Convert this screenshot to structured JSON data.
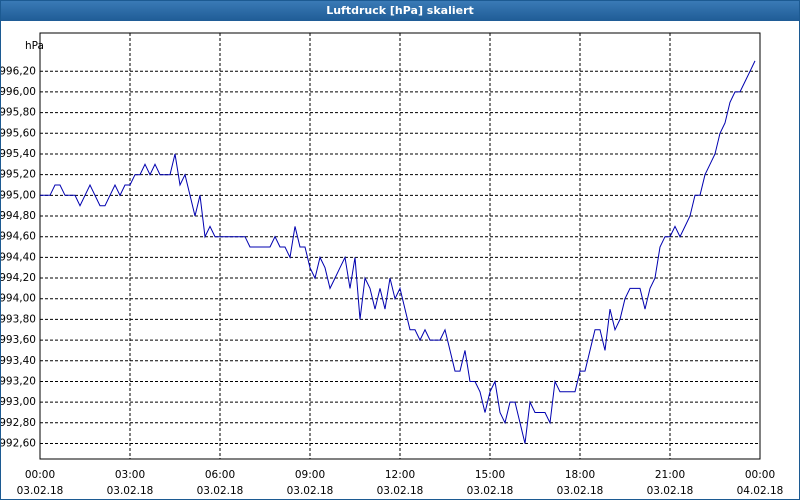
{
  "chart_data": {
    "type": "line",
    "title": "Luftdruck [hPa] skaliert",
    "ylabel": "hPa",
    "color": "#0000b0",
    "grid": true,
    "xlim": [
      0,
      1440
    ],
    "xticks": [
      {
        "value": 0,
        "label": "00:00"
      },
      {
        "value": 180,
        "label": "03:00"
      },
      {
        "value": 360,
        "label": "06:00"
      },
      {
        "value": 540,
        "label": "09:00"
      },
      {
        "value": 720,
        "label": "12:00"
      },
      {
        "value": 900,
        "label": "15:00"
      },
      {
        "value": 1080,
        "label": "18:00"
      },
      {
        "value": 1260,
        "label": "21:00"
      },
      {
        "value": 1440,
        "label": "00:00"
      }
    ],
    "xtick_dates": [
      "03.02.18",
      "03.02.18",
      "03.02.18",
      "03.02.18",
      "03.02.18",
      "03.02.18",
      "03.02.18",
      "03.02.18",
      "04.02.18"
    ],
    "ylim": [
      992.45,
      996.57
    ],
    "yticks": [
      {
        "value": 992.6,
        "label": "992,60"
      },
      {
        "value": 992.8,
        "label": "992,80"
      },
      {
        "value": 993.0,
        "label": "993,00"
      },
      {
        "value": 993.2,
        "label": "993,20"
      },
      {
        "value": 993.4,
        "label": "993,40"
      },
      {
        "value": 993.6,
        "label": "993,60"
      },
      {
        "value": 993.8,
        "label": "993,80"
      },
      {
        "value": 994.0,
        "label": "994,00"
      },
      {
        "value": 994.2,
        "label": "994,20"
      },
      {
        "value": 994.4,
        "label": "994,40"
      },
      {
        "value": 994.6,
        "label": "994,60"
      },
      {
        "value": 994.8,
        "label": "994,80"
      },
      {
        "value": 995.0,
        "label": "995,00"
      },
      {
        "value": 995.2,
        "label": "995,20"
      },
      {
        "value": 995.4,
        "label": "995,40"
      },
      {
        "value": 995.6,
        "label": "995,60"
      },
      {
        "value": 995.8,
        "label": "995,80"
      },
      {
        "value": 996.0,
        "label": "996,00"
      },
      {
        "value": 996.2,
        "label": "996,20"
      }
    ],
    "x": [
      0,
      20,
      30,
      40,
      50,
      70,
      80,
      100,
      120,
      130,
      140,
      150,
      160,
      170,
      180,
      190,
      200,
      210,
      220,
      230,
      240,
      260,
      270,
      280,
      290,
      300,
      310,
      320,
      330,
      340,
      350,
      410,
      420,
      460,
      470,
      480,
      490,
      500,
      510,
      520,
      530,
      540,
      550,
      560,
      570,
      580,
      590,
      600,
      610,
      620,
      630,
      640,
      650,
      660,
      670,
      680,
      690,
      700,
      710,
      720,
      730,
      740,
      750,
      760,
      770,
      780,
      800,
      810,
      820,
      830,
      840,
      850,
      860,
      870,
      880,
      890,
      900,
      910,
      920,
      930,
      940,
      950,
      960,
      970,
      980,
      990,
      1010,
      1020,
      1030,
      1040,
      1070,
      1080,
      1090,
      1100,
      1110,
      1120,
      1130,
      1140,
      1150,
      1160,
      1170,
      1180,
      1200,
      1210,
      1220,
      1230,
      1240,
      1250,
      1260,
      1270,
      1280,
      1290,
      1300,
      1310,
      1320,
      1330,
      1340,
      1350,
      1360,
      1370,
      1380,
      1390,
      1400,
      1410,
      1420,
      1430
    ],
    "values": [
      995.0,
      995.0,
      995.1,
      995.1,
      995.0,
      995.0,
      994.9,
      995.1,
      994.9,
      994.9,
      995.0,
      995.1,
      995.0,
      995.1,
      995.1,
      995.2,
      995.2,
      995.3,
      995.2,
      995.3,
      995.2,
      995.2,
      995.4,
      995.1,
      995.2,
      995.0,
      994.8,
      995.0,
      994.6,
      994.7,
      994.6,
      994.6,
      994.5,
      994.5,
      994.6,
      994.5,
      994.5,
      994.4,
      994.7,
      994.5,
      994.5,
      994.3,
      994.2,
      994.4,
      994.3,
      994.1,
      994.2,
      994.3,
      994.4,
      994.1,
      994.4,
      993.8,
      994.2,
      994.1,
      993.9,
      994.1,
      993.9,
      994.2,
      994.0,
      994.1,
      993.9,
      993.7,
      993.7,
      993.6,
      993.7,
      993.6,
      993.6,
      993.7,
      993.5,
      993.3,
      993.3,
      993.5,
      993.2,
      993.2,
      993.1,
      992.9,
      993.1,
      993.2,
      992.9,
      992.8,
      993.0,
      993.0,
      992.8,
      992.6,
      993.0,
      992.9,
      992.9,
      992.8,
      993.2,
      993.1,
      993.1,
      993.3,
      993.3,
      993.5,
      993.7,
      993.7,
      993.5,
      993.9,
      993.7,
      993.8,
      994.0,
      994.1,
      994.1,
      993.9,
      994.1,
      994.2,
      994.5,
      994.6,
      994.6,
      994.7,
      994.6,
      994.7,
      994.8,
      995.0,
      995.0,
      995.2,
      995.3,
      995.4,
      995.6,
      995.7,
      995.9,
      996.0,
      996.0,
      996.1,
      996.2,
      996.3
    ]
  }
}
